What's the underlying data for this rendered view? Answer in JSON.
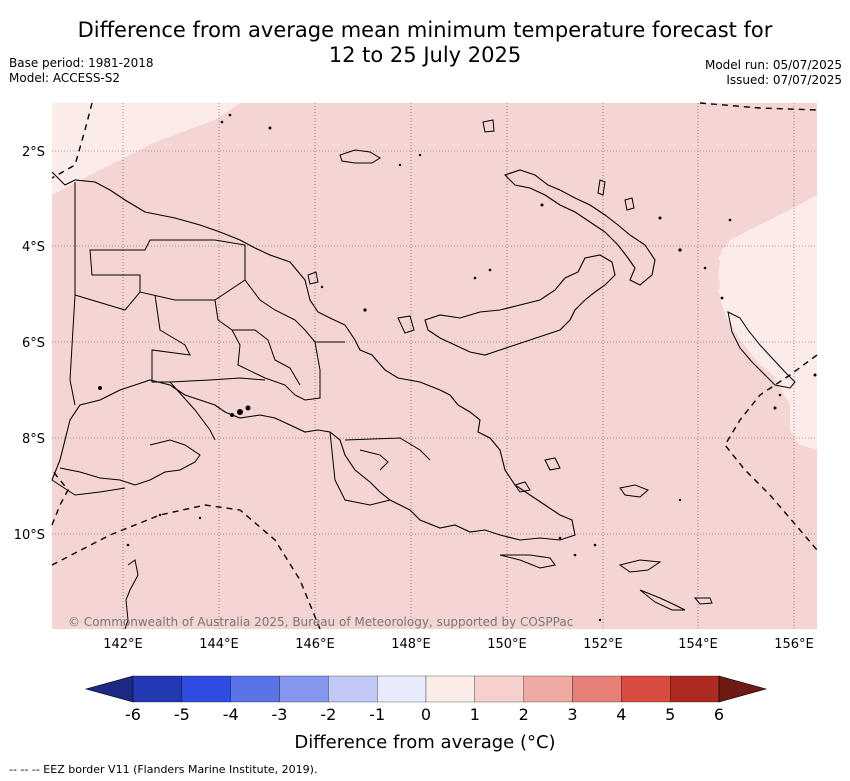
{
  "header": {
    "title_line1": "Difference from average mean minimum temperature forecast for",
    "title_line2": "12 to 25 July 2025",
    "base_period": "Base period: 1981-2018",
    "model": "Model: ACCESS-S2",
    "model_run": "Model run: 05/07/2025",
    "issued": "Issued: 07/07/2025"
  },
  "map": {
    "lat_labels": [
      "2°S",
      "4°S",
      "6°S",
      "8°S",
      "10°S"
    ],
    "lon_labels": [
      "142°E",
      "144°E",
      "146°E",
      "148°E",
      "150°E",
      "152°E",
      "154°E",
      "156°E"
    ],
    "copyright": "© Commonwealth of Australia 2025, Bureau of Meteorology, supported by COSPPac",
    "colors": {
      "field_main": "#f5d5d3",
      "field_light": "#fbebe9",
      "coast": "#000000"
    }
  },
  "colorbar": {
    "labels": [
      "-6",
      "-5",
      "-4",
      "-3",
      "-2",
      "-1",
      "0",
      "1",
      "2",
      "3",
      "4",
      "5",
      "6"
    ],
    "colors": [
      "#1c2a86",
      "#2239b3",
      "#2f4be0",
      "#5a73e6",
      "#8596ee",
      "#c2c8f5",
      "#e8ebfb",
      "#fbebe9",
      "#f5d0cd",
      "#efaaa4",
      "#e67f78",
      "#d94a40",
      "#ad2a22",
      "#6e1a15"
    ],
    "title": "Difference from average (°C)"
  },
  "footer": {
    "eez_note": "-- -- -- EEZ border V11 (Flanders Marine Institute, 2019)."
  }
}
